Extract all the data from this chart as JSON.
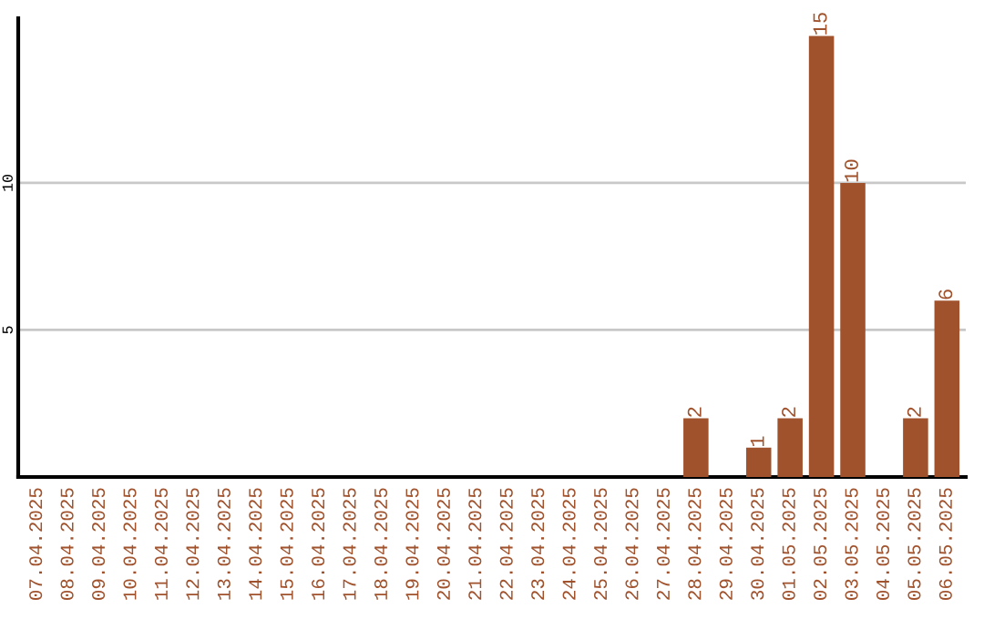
{
  "chart_data": {
    "type": "bar",
    "categories": [
      "07.04.2025",
      "08.04.2025",
      "09.04.2025",
      "10.04.2025",
      "11.04.2025",
      "12.04.2025",
      "13.04.2025",
      "14.04.2025",
      "15.04.2025",
      "16.04.2025",
      "17.04.2025",
      "18.04.2025",
      "19.04.2025",
      "20.04.2025",
      "21.04.2025",
      "22.04.2025",
      "23.04.2025",
      "24.04.2025",
      "25.04.2025",
      "26.04.2025",
      "27.04.2025",
      "28.04.2025",
      "29.04.2025",
      "30.04.2025",
      "01.05.2025",
      "02.05.2025",
      "03.05.2025",
      "04.05.2025",
      "05.05.2025",
      "06.05.2025"
    ],
    "values": [
      0,
      0,
      0,
      0,
      0,
      0,
      0,
      0,
      0,
      0,
      0,
      0,
      0,
      0,
      0,
      0,
      0,
      0,
      0,
      0,
      0,
      2,
      0,
      1,
      2,
      15,
      10,
      0,
      2,
      6
    ],
    "value_labels": [
      null,
      null,
      null,
      null,
      null,
      null,
      null,
      null,
      null,
      null,
      null,
      null,
      null,
      null,
      null,
      null,
      null,
      null,
      null,
      null,
      null,
      "2",
      null,
      "1",
      "2",
      "15",
      "10",
      null,
      "2",
      "6"
    ],
    "color": "#a0522d",
    "ylim": [
      0,
      15.6
    ],
    "yticks": [
      5,
      10
    ],
    "grid": "y"
  }
}
